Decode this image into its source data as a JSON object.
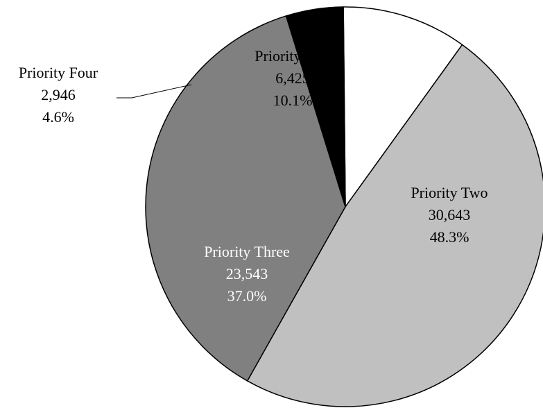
{
  "chart_data": {
    "type": "pie",
    "title": "",
    "slices": [
      {
        "label": "Priority One",
        "value": 6425,
        "value_text": "6,425",
        "percent_text": "10.1%",
        "color": "#ffffff",
        "text_color": "#000000"
      },
      {
        "label": "Priority Two",
        "value": 30643,
        "value_text": "30,643",
        "percent_text": "48.3%",
        "color": "#c0c0c0",
        "text_color": "#000000"
      },
      {
        "label": "Priority Three",
        "value": 23543,
        "value_text": "23,543",
        "percent_text": "37.0%",
        "color": "#808080",
        "text_color": "#ffffff"
      },
      {
        "label": "Priority Four",
        "value": 2946,
        "value_text": "2,946",
        "percent_text": "4.6%",
        "color": "#000000",
        "text_color": "#000000"
      }
    ],
    "legend": "none",
    "outline_color": "#000000"
  }
}
